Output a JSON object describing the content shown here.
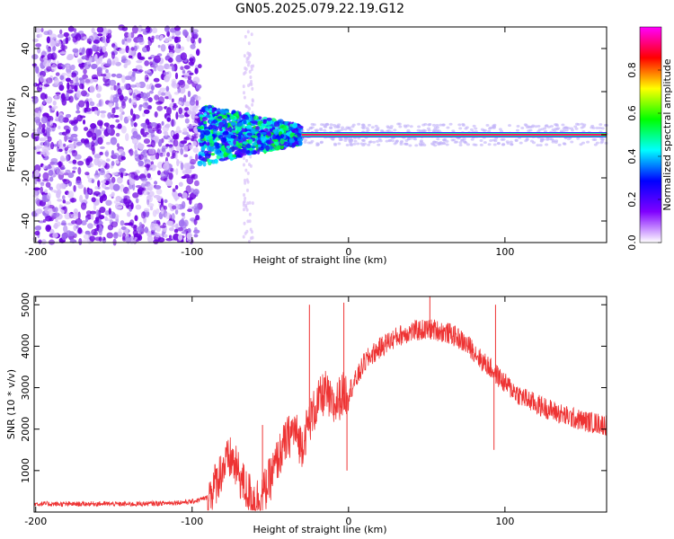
{
  "title": "GN05.2025.079.22.19.G12",
  "chart_data": [
    {
      "type": "heatmap",
      "xlabel": "Height of straight line (km)",
      "ylabel": "Frequency (Hz)",
      "xlim": [
        -201,
        165
      ],
      "ylim": [
        -50,
        50
      ],
      "x_ticks": [
        "-200",
        "-100",
        "0",
        "100"
      ],
      "y_ticks": [
        "-40",
        "-20",
        "0",
        "20",
        "40"
      ],
      "colorbar": {
        "label": "Normalized spectral amplitude",
        "range": [
          0,
          1
        ],
        "ticks": [
          "0.0",
          "0.2",
          "0.4",
          "0.6",
          "0.8"
        ],
        "colors": [
          "#ffffff",
          "#8000ff",
          "#0000ff",
          "#00ffff",
          "#00ff00",
          "#ffff00",
          "#ff0000",
          "#ff00ff"
        ]
      },
      "features": {
        "scatter_region_km": [
          -201,
          -95
        ],
        "broadband_region_km": [
          -95,
          -30
        ],
        "line_start_km": -30,
        "line_freq_hz": 0
      }
    },
    {
      "type": "line",
      "xlabel": "Height of straight line (km)",
      "ylabel": "SNR (10 * v/v)",
      "xlim": [
        -201,
        165
      ],
      "ylim": [
        0,
        5200
      ],
      "x_ticks": [
        "-200",
        "-100",
        "0",
        "100"
      ],
      "y_ticks": [
        "1000",
        "2000",
        "3000",
        "4000",
        "5000"
      ],
      "color": "#ee3333",
      "series": [
        {
          "x": [
            -201,
            -180,
            -160,
            -140,
            -120,
            -100,
            -90,
            -85,
            -80,
            -75,
            -70,
            -65,
            -60,
            -55,
            -50,
            -45,
            -40,
            -35,
            -30,
            -25,
            -20,
            -15,
            -10,
            -5,
            0,
            5,
            10,
            15,
            20,
            25,
            30,
            35,
            40,
            45,
            50,
            55,
            60,
            65,
            70,
            75,
            80,
            85,
            90,
            95,
            100,
            105,
            110,
            115,
            120,
            130,
            140,
            150,
            165
          ],
          "values": [
            200,
            190,
            200,
            190,
            210,
            250,
            350,
            700,
            1100,
            1300,
            900,
            500,
            300,
            400,
            800,
            1300,
            1700,
            2000,
            1600,
            2200,
            2600,
            2900,
            2500,
            2800,
            2900,
            3200,
            3600,
            3800,
            3950,
            4100,
            4200,
            4300,
            4350,
            4380,
            4400,
            4400,
            4350,
            4300,
            4200,
            4050,
            3900,
            3650,
            3500,
            3300,
            3100,
            2950,
            2800,
            2700,
            2600,
            2450,
            2300,
            2200,
            2100
          ]
        }
      ],
      "annotations": [
        {
          "x": -55,
          "y": 2100
        },
        {
          "x": -25,
          "y": 5000
        },
        {
          "x": -3,
          "y": 5050
        },
        {
          "x": 52,
          "y": 5200
        },
        {
          "x": 94,
          "y": 5000
        },
        {
          "x": -1,
          "y": 1000
        },
        {
          "x": 93,
          "y": 1500
        }
      ]
    }
  ]
}
